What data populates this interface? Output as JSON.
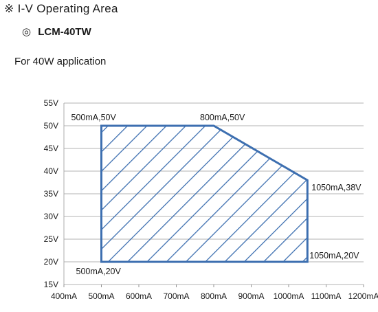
{
  "header": {
    "section_symbol": "※",
    "section_title": "I-V Operating Area",
    "model_symbol": "◎",
    "model": "LCM-40TW",
    "note": "For 40W application"
  },
  "chart_data": {
    "type": "area",
    "x_unit": "mA",
    "y_unit": "V",
    "x_ticks": [
      "400mA",
      "500mA",
      "600mA",
      "700mA",
      "800mA",
      "900mA",
      "1000mA",
      "1100mA",
      "1200mA"
    ],
    "y_ticks": [
      "15V",
      "20V",
      "25V",
      "30V",
      "35V",
      "40V",
      "45V",
      "50V",
      "55V"
    ],
    "xlim": [
      400,
      1200
    ],
    "ylim": [
      15,
      55
    ],
    "grid": "horizontal",
    "outline": [
      {
        "x": 500,
        "y": 20
      },
      {
        "x": 500,
        "y": 50
      },
      {
        "x": 800,
        "y": 50
      },
      {
        "x": 1050,
        "y": 38
      },
      {
        "x": 1050,
        "y": 20
      }
    ],
    "annotations": [
      {
        "x": 500,
        "y": 50,
        "label": "500mA,50V"
      },
      {
        "x": 800,
        "y": 50,
        "label": "800mA,50V"
      },
      {
        "x": 1050,
        "y": 38,
        "label": "1050mA,38V"
      },
      {
        "x": 1050,
        "y": 20,
        "label": "1050mA,20V"
      },
      {
        "x": 500,
        "y": 20,
        "label": "500mA,20V"
      }
    ],
    "fill_pattern": "diagonal-hatch",
    "color": "#3d6fb0"
  }
}
